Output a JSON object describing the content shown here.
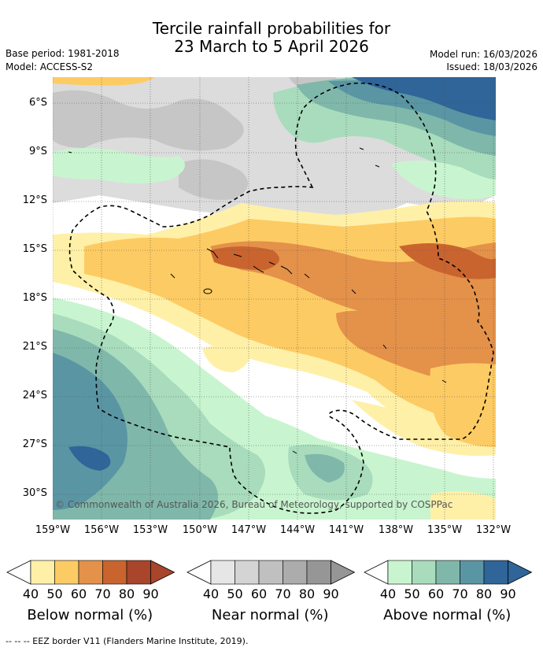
{
  "title": {
    "line1": "Tercile rainfall probabilities for",
    "line2": "23 March to 5 April 2026"
  },
  "meta": {
    "base_period": "Base period: 1981-2018",
    "model": "Model: ACCESS-S2",
    "model_run": "Model run: 16/03/2026",
    "issued": "Issued: 18/03/2026"
  },
  "map": {
    "lat_labels": [
      "6°S",
      "9°S",
      "12°S",
      "15°S",
      "18°S",
      "21°S",
      "24°S",
      "27°S",
      "30°S"
    ],
    "lon_labels": [
      "159°W",
      "156°W",
      "153°W",
      "150°W",
      "147°W",
      "144°W",
      "141°W",
      "138°W",
      "135°W",
      "132°W"
    ],
    "copyright": "© Commonwealth of Australia 2026, Bureau of Meteorology, supported by COSPPac"
  },
  "legend": [
    {
      "title": "Below normal (%)",
      "ticks": [
        "40",
        "50",
        "60",
        "70",
        "80",
        "90"
      ],
      "colors": [
        "#fff0a8",
        "#fdcb63",
        "#e4914a",
        "#c9642f",
        "#a8452a"
      ]
    },
    {
      "title": "Near normal (%)",
      "ticks": [
        "40",
        "50",
        "60",
        "70",
        "80",
        "90"
      ],
      "colors": [
        "#e6e6e6",
        "#d4d4d4",
        "#c0c0c0",
        "#acacac",
        "#969696"
      ]
    },
    {
      "title": "Above normal (%)",
      "ticks": [
        "40",
        "50",
        "60",
        "70",
        "80",
        "90"
      ],
      "colors": [
        "#c8f5cf",
        "#a8dcbc",
        "#7fb8aa",
        "#5a95a4",
        "#2f6598"
      ]
    }
  ],
  "footer": "--  --  -- EEZ border V11 (Flanders Marine Institute, 2019)."
}
